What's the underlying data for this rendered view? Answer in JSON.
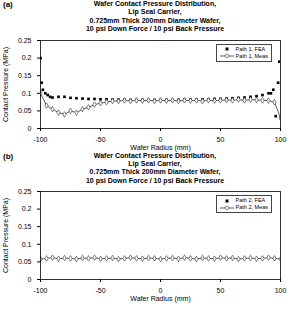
{
  "chart_data": [
    {
      "type": "line",
      "panel_label": "(a)",
      "title": [
        "Wafer Contact Pressure Distribution,",
        "Lip Seal Carrier,",
        "0.725mm Thick 200mm Diameter Wafer,",
        "10 psi Down Force / 10 psi Back Pressure"
      ],
      "x_label": "Wafer Radius (mm)",
      "y_label": "Contact Pressure (MPa)",
      "xlim": [
        -100,
        100
      ],
      "xticks": [
        -100,
        -50,
        0,
        50,
        100
      ],
      "ylim": [
        0,
        0.25
      ],
      "yticks": [
        0,
        0.05,
        0.1,
        0.15,
        0.2,
        0.25
      ],
      "grid": false,
      "legend": "top-right",
      "series": [
        {
          "name": "Path 1, FEA",
          "color": "#000000",
          "marker": "square",
          "line_style": "none",
          "x": [
            -100,
            -99,
            -98,
            -96,
            -94,
            -92,
            -90,
            -85,
            -80,
            -75,
            -70,
            -65,
            -60,
            -55,
            -50,
            -45,
            -40,
            -35,
            -30,
            -25,
            -20,
            -15,
            -10,
            -5,
            0,
            5,
            10,
            15,
            20,
            25,
            30,
            35,
            40,
            45,
            50,
            55,
            60,
            65,
            70,
            75,
            80,
            85,
            90,
            92,
            94,
            96,
            98,
            99,
            100
          ],
          "values": [
            0.2,
            0.13,
            0.11,
            0.1,
            0.095,
            0.09,
            0.088,
            0.09,
            0.09,
            0.087,
            0.086,
            0.085,
            0.084,
            0.084,
            0.083,
            0.083,
            0.082,
            0.082,
            0.082,
            0.081,
            0.081,
            0.081,
            0.081,
            0.081,
            0.081,
            0.081,
            0.081,
            0.081,
            0.082,
            0.082,
            0.082,
            0.083,
            0.083,
            0.084,
            0.084,
            0.085,
            0.086,
            0.087,
            0.088,
            0.09,
            0.092,
            0.095,
            0.1,
            0.1,
            0.11,
            0.035,
            0.13,
            0.19,
            0.03
          ]
        },
        {
          "name": "Path 1, Meas",
          "color": "#333333",
          "marker": "diamond",
          "line_style": "solid",
          "x": [
            -100,
            -95,
            -90,
            -85,
            -80,
            -75,
            -70,
            -65,
            -60,
            -55,
            -50,
            -45,
            -40,
            -35,
            -30,
            -25,
            -20,
            -15,
            -10,
            -5,
            0,
            5,
            10,
            15,
            20,
            25,
            30,
            35,
            40,
            45,
            50,
            55,
            60,
            65,
            70,
            75,
            80,
            85,
            90,
            95,
            100
          ],
          "values": [
            0.1,
            0.065,
            0.055,
            0.045,
            0.04,
            0.05,
            0.045,
            0.055,
            0.06,
            0.068,
            0.072,
            0.075,
            0.078,
            0.078,
            0.08,
            0.078,
            0.08,
            0.079,
            0.08,
            0.078,
            0.08,
            0.079,
            0.08,
            0.078,
            0.08,
            0.079,
            0.08,
            0.078,
            0.08,
            0.079,
            0.08,
            0.081,
            0.08,
            0.082,
            0.08,
            0.082,
            0.081,
            0.08,
            0.079,
            0.075,
            0.03
          ]
        }
      ]
    },
    {
      "type": "line",
      "panel_label": "(b)",
      "title": [
        "Wafer Contact Pressure Distribution,",
        "Lip Seal Carrier,",
        "0.725mm Thick 200mm Diameter Wafer,",
        "10 psi Down Force / 10 psi Back Pressure"
      ],
      "x_label": "Wafer Radius (mm)",
      "y_label": "Contact Pressure (MPa)",
      "xlim": [
        -100,
        100
      ],
      "xticks": [
        -100,
        -50,
        0,
        50,
        100
      ],
      "ylim": [
        0,
        0.25
      ],
      "yticks": [
        0,
        0.05,
        0.1,
        0.15,
        0.2,
        0.25
      ],
      "grid": false,
      "legend": "top-right",
      "series": [
        {
          "name": "Path 2, FEA",
          "color": "#000000",
          "marker": "square",
          "line_style": "none",
          "x": [
            -100,
            100
          ],
          "values": [
            null,
            null
          ]
        },
        {
          "name": "Path 2, Meas",
          "color": "#333333",
          "marker": "diamond",
          "line_style": "solid",
          "x": [
            -100,
            -95,
            -90,
            -85,
            -80,
            -75,
            -70,
            -65,
            -60,
            -55,
            -50,
            -45,
            -40,
            -35,
            -30,
            -25,
            -20,
            -15,
            -10,
            -5,
            0,
            5,
            10,
            15,
            20,
            25,
            30,
            35,
            40,
            45,
            50,
            55,
            60,
            65,
            70,
            75,
            80,
            85,
            90,
            95,
            100
          ],
          "values": [
            0.058,
            0.06,
            0.062,
            0.059,
            0.061,
            0.06,
            0.058,
            0.061,
            0.06,
            0.062,
            0.059,
            0.06,
            0.061,
            0.058,
            0.06,
            0.062,
            0.06,
            0.059,
            0.061,
            0.06,
            0.058,
            0.06,
            0.061,
            0.059,
            0.062,
            0.06,
            0.058,
            0.061,
            0.06,
            0.059,
            0.062,
            0.06,
            0.061,
            0.058,
            0.06,
            0.061,
            0.059,
            0.06,
            0.062,
            0.06,
            0.058
          ]
        }
      ]
    }
  ]
}
